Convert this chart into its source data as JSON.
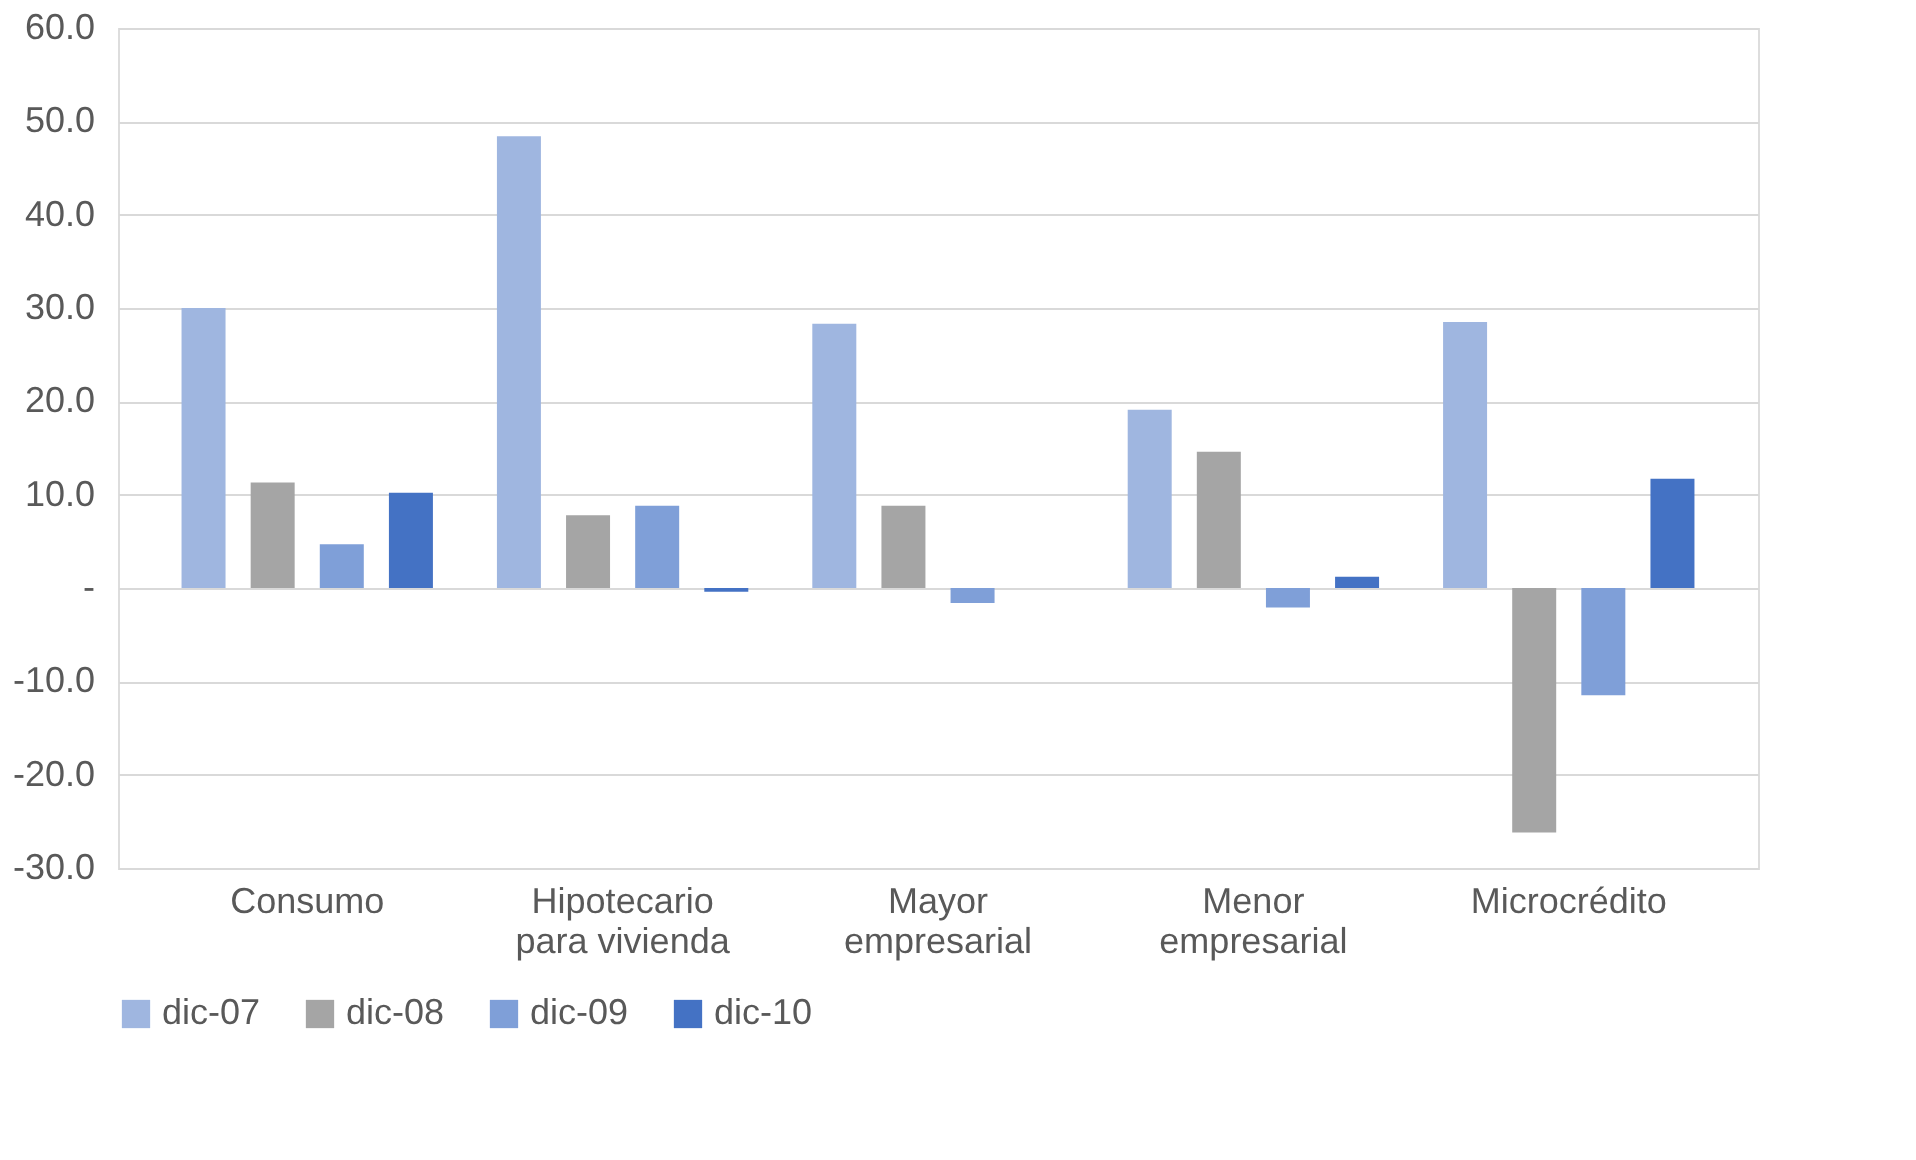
{
  "chart_data": {
    "type": "bar",
    "categories": [
      "Consumo",
      "Hipotecario\npara vivienda",
      "Mayor\nempresarial",
      "Menor\nempresarial",
      "Microcrédito"
    ],
    "series": [
      {
        "name": "dic-07",
        "color": "#9fb6e0",
        "values": [
          30.0,
          48.4,
          28.3,
          19.1,
          28.5
        ]
      },
      {
        "name": "dic-08",
        "color": "#a5a5a5",
        "values": [
          11.3,
          7.8,
          8.8,
          14.6,
          -26.2
        ]
      },
      {
        "name": "dic-09",
        "color": "#7f9fd8",
        "values": [
          4.7,
          8.8,
          -1.6,
          -2.1,
          -11.5
        ]
      },
      {
        "name": "dic-10",
        "color": "#4472c4",
        "values": [
          10.2,
          -0.4,
          0,
          1.2,
          11.7
        ]
      }
    ],
    "ylim": [
      -30,
      60
    ],
    "yticks": [
      {
        "value": -30,
        "label": "-30.0"
      },
      {
        "value": -20,
        "label": "-20.0"
      },
      {
        "value": -10,
        "label": "-10.0"
      },
      {
        "value": 0,
        "label": "-"
      },
      {
        "value": 10,
        "label": "10.0"
      },
      {
        "value": 20,
        "label": "20.0"
      },
      {
        "value": 30,
        "label": "30.0"
      },
      {
        "value": 40,
        "label": "40.0"
      },
      {
        "value": 50,
        "label": "50.0"
      },
      {
        "value": 60,
        "label": "60.0"
      }
    ],
    "grid": "y",
    "legend": "bottom"
  }
}
